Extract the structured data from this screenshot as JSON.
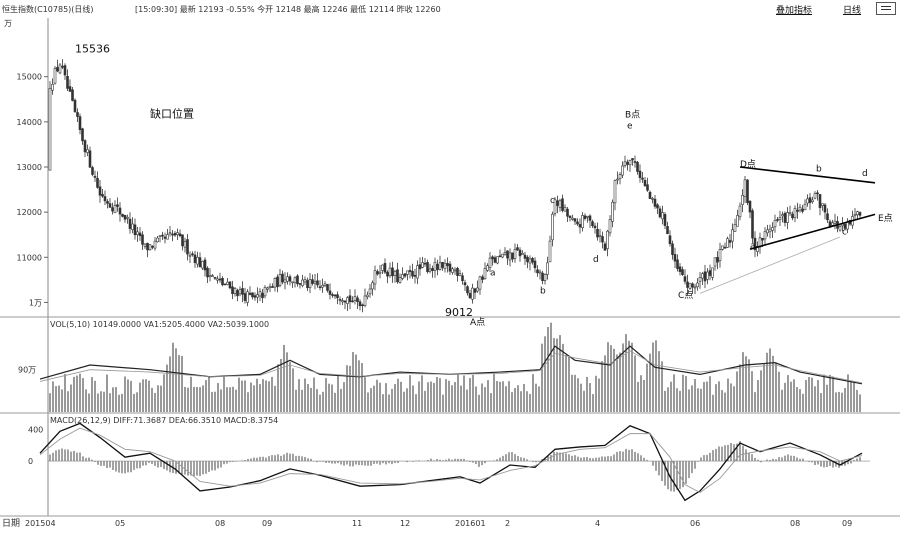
{
  "header": {
    "title": "恒生指数(C10785)(日线)",
    "quote": "[15:09:30]  最新 12193  -0.55%  今开 12148  最高 12246  最低 12114  昨收 12260",
    "overlay_button": "叠加指标",
    "period_button": "日线"
  },
  "chart_data": [
    {
      "type": "candlestick",
      "title": "",
      "y_unit_label": "万",
      "ylim": [
        9700,
        16300
      ],
      "y_ticks": [
        10000,
        11000,
        12000,
        13000,
        14000,
        15000
      ],
      "y_tick_labels": [
        "1万",
        "11000",
        "12000",
        "13000",
        "14000",
        "15000"
      ],
      "x_tick_labels": [
        "201504",
        "05",
        "08",
        "09",
        "11",
        "12",
        "201601",
        "2",
        "4",
        "06",
        "08",
        "09"
      ],
      "trend": [
        [
          0,
          12900
        ],
        [
          10,
          14600
        ],
        [
          22,
          15600
        ],
        [
          38,
          14300
        ],
        [
          60,
          15300
        ],
        [
          80,
          13800
        ],
        [
          100,
          12400
        ],
        [
          125,
          11900
        ],
        [
          145,
          11200
        ],
        [
          175,
          11500
        ],
        [
          215,
          10500
        ],
        [
          255,
          10050
        ],
        [
          285,
          10600
        ],
        [
          305,
          10400
        ],
        [
          330,
          10300
        ],
        [
          360,
          9950
        ],
        [
          380,
          10800
        ],
        [
          400,
          10500
        ],
        [
          425,
          10800
        ],
        [
          460,
          10700
        ],
        [
          470,
          10100
        ],
        [
          490,
          10900
        ],
        [
          520,
          11100
        ],
        [
          545,
          10500
        ],
        [
          555,
          12300
        ],
        [
          575,
          11700
        ],
        [
          590,
          11900
        ],
        [
          605,
          11200
        ],
        [
          615,
          12600
        ],
        [
          625,
          13200
        ],
        [
          635,
          13100
        ],
        [
          652,
          12200
        ],
        [
          665,
          11800
        ],
        [
          675,
          10800
        ],
        [
          690,
          10300
        ],
        [
          710,
          10700
        ],
        [
          730,
          11400
        ],
        [
          745,
          12600
        ],
        [
          755,
          11200
        ],
        [
          775,
          11800
        ],
        [
          800,
          12000
        ],
        [
          815,
          12400
        ],
        [
          830,
          11800
        ],
        [
          845,
          11600
        ],
        [
          862,
          12100
        ]
      ],
      "annotations": [
        {
          "text": "15536",
          "x": 75,
          "y": 15536
        },
        {
          "text": "缺口位置",
          "x": 150,
          "y": 14100
        },
        {
          "text": "9012",
          "x": 445,
          "y": 9700
        },
        {
          "text": "A点",
          "x": 470,
          "y": 9500
        },
        {
          "text": "a",
          "x": 490,
          "y": 10600
        },
        {
          "text": "b",
          "x": 540,
          "y": 10200
        },
        {
          "text": "c",
          "x": 550,
          "y": 12200
        },
        {
          "text": "d",
          "x": 593,
          "y": 10900
        },
        {
          "text": "B点",
          "x": 625,
          "y": 14100
        },
        {
          "text": "e",
          "x": 627,
          "y": 13850
        },
        {
          "text": "C点",
          "x": 678,
          "y": 10100
        },
        {
          "text": "D点",
          "x": 740,
          "y": 13000
        },
        {
          "text": "a",
          "x": 750,
          "y": 11200
        },
        {
          "text": "b",
          "x": 816,
          "y": 12900
        },
        {
          "text": "c",
          "x": 842,
          "y": 11500
        },
        {
          "text": "d",
          "x": 862,
          "y": 12800
        },
        {
          "text": "E点",
          "x": 878,
          "y": 11800
        }
      ],
      "trendlines": [
        {
          "from": [
            740,
            13000
          ],
          "to": [
            875,
            12650
          ]
        },
        {
          "from": [
            750,
            11180
          ],
          "to": [
            875,
            11950
          ]
        }
      ]
    },
    {
      "type": "bar",
      "title": "VOL(5,10) 10149.0000 VA1:5205.4000 VA2:5039.1000",
      "y_tick_labels": [
        "90万"
      ],
      "ylim": [
        0,
        200
      ],
      "series": [
        {
          "name": "VOL",
          "kind": "bar",
          "baseline": 50,
          "peaks": [
            [
              40,
              110
            ],
            [
              175,
              140
            ],
            [
              285,
              130
            ],
            [
              355,
              120
            ],
            [
              550,
              175
            ],
            [
              560,
              150
            ],
            [
              610,
              140
            ],
            [
              627,
              160
            ],
            [
              655,
              140
            ],
            [
              745,
              120
            ],
            [
              770,
              125
            ]
          ]
        },
        {
          "name": "VA1",
          "kind": "line",
          "values": [
            [
              40,
              70
            ],
            [
              90,
              100
            ],
            [
              150,
              90
            ],
            [
              210,
              75
            ],
            [
              260,
              80
            ],
            [
              290,
              110
            ],
            [
              320,
              80
            ],
            [
              360,
              75
            ],
            [
              400,
              85
            ],
            [
              450,
              80
            ],
            [
              500,
              85
            ],
            [
              540,
              90
            ],
            [
              555,
              140
            ],
            [
              575,
              110
            ],
            [
              610,
              100
            ],
            [
              630,
              140
            ],
            [
              655,
              95
            ],
            [
              700,
              80
            ],
            [
              745,
              100
            ],
            [
              775,
              105
            ],
            [
              800,
              85
            ],
            [
              862,
              60
            ]
          ]
        },
        {
          "name": "VA2",
          "kind": "line",
          "values": [
            [
              40,
              65
            ],
            [
              90,
              90
            ],
            [
              150,
              85
            ],
            [
              210,
              75
            ],
            [
              260,
              78
            ],
            [
              290,
              100
            ],
            [
              320,
              82
            ],
            [
              360,
              76
            ],
            [
              400,
              82
            ],
            [
              450,
              80
            ],
            [
              500,
              82
            ],
            [
              540,
              88
            ],
            [
              555,
              125
            ],
            [
              575,
              115
            ],
            [
              610,
              102
            ],
            [
              630,
              130
            ],
            [
              655,
              100
            ],
            [
              700,
              85
            ],
            [
              745,
              95
            ],
            [
              775,
              100
            ],
            [
              800,
              88
            ],
            [
              862,
              62
            ]
          ]
        }
      ]
    },
    {
      "type": "line",
      "title": "MACD(26,12,9) DIFF:71.3687 DEA:66.3510 MACD:8.3754",
      "y_tick_labels": [
        "400",
        "0"
      ],
      "y_ticks": [
        400,
        0
      ],
      "ylim": [
        -700,
        600
      ],
      "series": [
        {
          "name": "DIFF",
          "values": [
            [
              40,
              100
            ],
            [
              60,
              380
            ],
            [
              80,
              480
            ],
            [
              100,
              300
            ],
            [
              125,
              50
            ],
            [
              150,
              100
            ],
            [
              175,
              -100
            ],
            [
              200,
              -380
            ],
            [
              230,
              -330
            ],
            [
              260,
              -250
            ],
            [
              290,
              -100
            ],
            [
              320,
              -180
            ],
            [
              360,
              -320
            ],
            [
              400,
              -300
            ],
            [
              430,
              -250
            ],
            [
              460,
              -200
            ],
            [
              480,
              -280
            ],
            [
              510,
              -50
            ],
            [
              535,
              -80
            ],
            [
              555,
              150
            ],
            [
              580,
              180
            ],
            [
              605,
              200
            ],
            [
              630,
              450
            ],
            [
              650,
              350
            ],
            [
              670,
              -200
            ],
            [
              685,
              -500
            ],
            [
              700,
              -380
            ],
            [
              720,
              -100
            ],
            [
              740,
              230
            ],
            [
              760,
              120
            ],
            [
              790,
              230
            ],
            [
              820,
              80
            ],
            [
              840,
              -50
            ],
            [
              862,
              100
            ]
          ]
        },
        {
          "name": "DEA",
          "values": [
            [
              40,
              80
            ],
            [
              60,
              280
            ],
            [
              80,
              420
            ],
            [
              100,
              330
            ],
            [
              125,
              150
            ],
            [
              150,
              120
            ],
            [
              175,
              0
            ],
            [
              200,
              -260
            ],
            [
              230,
              -320
            ],
            [
              260,
              -280
            ],
            [
              290,
              -160
            ],
            [
              320,
              -170
            ],
            [
              360,
              -280
            ],
            [
              400,
              -290
            ],
            [
              430,
              -260
            ],
            [
              460,
              -220
            ],
            [
              480,
              -240
            ],
            [
              510,
              -120
            ],
            [
              535,
              -60
            ],
            [
              555,
              80
            ],
            [
              580,
              150
            ],
            [
              605,
              170
            ],
            [
              630,
              350
            ],
            [
              650,
              350
            ],
            [
              670,
              50
            ],
            [
              685,
              -300
            ],
            [
              700,
              -400
            ],
            [
              720,
              -220
            ],
            [
              740,
              80
            ],
            [
              760,
              130
            ],
            [
              790,
              180
            ],
            [
              820,
              120
            ],
            [
              840,
              0
            ],
            [
              862,
              70
            ]
          ]
        }
      ]
    }
  ]
}
